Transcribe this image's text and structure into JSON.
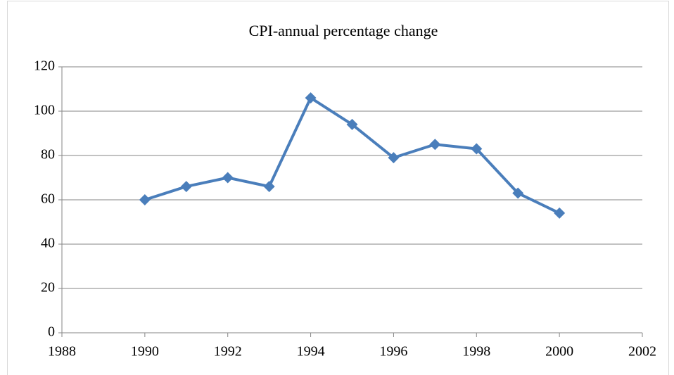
{
  "chart_data": {
    "type": "line",
    "title": "CPI-annual percentage change",
    "x": [
      1990,
      1991,
      1992,
      1993,
      1994,
      1995,
      1996,
      1997,
      1998,
      1999,
      2000
    ],
    "series": [
      {
        "color": "#4a7ebb",
        "values": [
          60,
          66,
          70,
          66,
          106,
          94,
          79,
          85,
          83,
          63,
          54
        ]
      }
    ],
    "xlim": [
      1988,
      2002
    ],
    "xticks": [
      1988,
      1990,
      1992,
      1994,
      1996,
      1998,
      2000,
      2002
    ],
    "ylim": [
      0,
      120
    ],
    "yticks": [
      0,
      20,
      40,
      60,
      80,
      100,
      120
    ],
    "grid": true
  }
}
